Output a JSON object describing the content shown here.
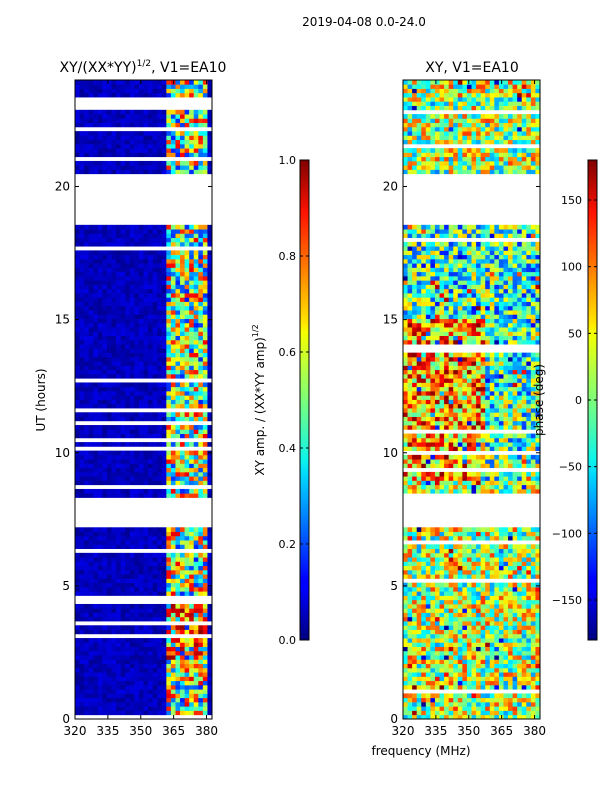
{
  "figure": {
    "suptitle": "2019-04-08 0.0-24.0",
    "shared_xlabel": "frequency (MHz)"
  },
  "chart_data": [
    {
      "type": "heatmap",
      "title_main": "XY/(XX*YY)",
      "title_exp": "1/2",
      "title_tail": ", V1=EA10",
      "xlabel": "",
      "ylabel": "UT (hours)",
      "xlim": [
        320,
        382.5
      ],
      "ylim": [
        0,
        24
      ],
      "xticks": [
        320,
        335,
        350,
        365,
        380
      ],
      "yticks": [
        0,
        5,
        10,
        15,
        20
      ],
      "colormap": "jet",
      "color_range": [
        0.0,
        1.0
      ],
      "data_gaps_ut": [
        [
          20.5,
          18.5
        ],
        [
          8.4,
          7.2
        ]
      ],
      "colorbar": {
        "label_main": "XY amp. / (XX*YY amp)",
        "label_exp": "1/2",
        "range": [
          0.0,
          1.0
        ],
        "ticks": [
          "0.0",
          "0.2",
          "0.4",
          "0.6",
          "0.8",
          "1.0"
        ]
      }
    },
    {
      "type": "heatmap",
      "title": "XY, V1=EA10",
      "xlabel": "frequency (MHz)",
      "ylabel": "",
      "xlim": [
        320,
        382.5
      ],
      "ylim": [
        0,
        24
      ],
      "xticks": [
        320,
        335,
        350,
        365,
        380
      ],
      "yticks": [
        0,
        5,
        10,
        15,
        20
      ],
      "colormap": "jet",
      "color_range": [
        -180,
        180
      ],
      "data_gaps_ut": [
        [
          20.5,
          18.5
        ],
        [
          8.4,
          7.2
        ]
      ],
      "colorbar": {
        "label": "phase (deg)",
        "range": [
          -180,
          180
        ],
        "ticks": [
          "-150",
          "-100",
          "-50",
          "0",
          "50",
          "100",
          "150"
        ]
      }
    }
  ]
}
